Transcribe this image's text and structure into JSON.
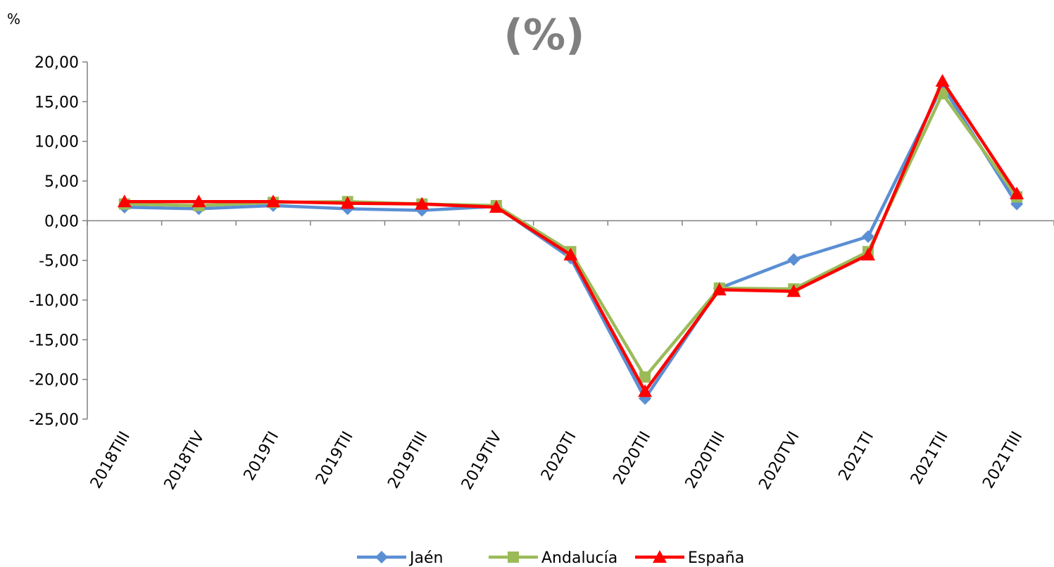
{
  "chart_data": {
    "type": "line",
    "title": "(%)",
    "ylabel": "%",
    "xlabel": "",
    "categories": [
      "2018TIII",
      "2018TIV",
      "2019TI",
      "2019TII",
      "2019TIII",
      "2019TIV",
      "2020TI",
      "2020TII",
      "2020TIII",
      "2020TVI",
      "2021TI",
      "2021TII",
      "2021TIII"
    ],
    "ylim": [
      -25,
      20
    ],
    "yticks": [
      20,
      15,
      10,
      5,
      0,
      -5,
      -10,
      -15,
      -20,
      -25
    ],
    "ytick_labels": [
      "20,00",
      "15,00",
      "10,00",
      "5,00",
      "0,00",
      "-5,00",
      "-10,00",
      "-15,00",
      "-20,00",
      "-25,00"
    ],
    "grid": false,
    "legend_position": "bottom",
    "series": [
      {
        "name": "Jaén",
        "color": "#5b8fd4",
        "marker": "diamond",
        "values": [
          1.7,
          1.5,
          1.9,
          1.5,
          1.3,
          1.8,
          -4.7,
          -22.4,
          -8.5,
          -4.9,
          -2.0,
          17.0,
          2.1
        ]
      },
      {
        "name": "Andalucía",
        "color": "#9bbb59",
        "marker": "square",
        "values": [
          2.1,
          1.9,
          2.3,
          2.4,
          2.1,
          1.9,
          -3.9,
          -19.7,
          -8.5,
          -8.6,
          -3.9,
          16.0,
          3.0
        ]
      },
      {
        "name": "España",
        "color": "#ff0000",
        "marker": "triangle",
        "values": [
          2.4,
          2.4,
          2.4,
          2.2,
          2.1,
          1.7,
          -4.3,
          -21.5,
          -8.7,
          -8.9,
          -4.3,
          17.6,
          3.4
        ]
      }
    ]
  }
}
